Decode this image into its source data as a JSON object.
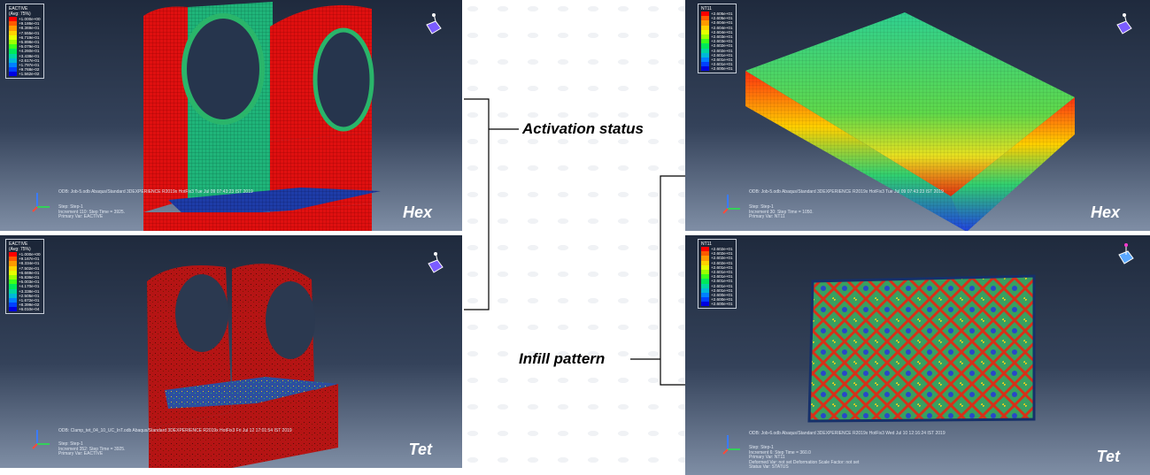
{
  "annotations": {
    "activation": "Activation status",
    "infill": "Infill pattern"
  },
  "panels": {
    "p1": {
      "label": "Hex",
      "legend_title": [
        "EACTIVE",
        "(Avg: 75%)"
      ],
      "legend_values": [
        "+1.000e+00",
        "+9.186e-01",
        "+8.369e-01",
        "+7.555e-01",
        "+6.719e-01",
        "+5.898e-01",
        "+5.079e-01",
        "+4.260e-01",
        "+3.438e-01",
        "+2.617e-01",
        "+1.797e-01",
        "+9.768e-02",
        "+1.562e-02"
      ],
      "info_line": "ODB: Job-5.odb    Abaqus/Standard 3DEXPERIENCE R2019x HotFix3    Tue Jul 09 07:43:23 IST 2019",
      "step_lines": [
        "Step: Step-1",
        "Increment   110: Step Time =   3925.",
        "Primary Var: EACTIVE"
      ]
    },
    "p2": {
      "label": "Tet",
      "legend_title": [
        "EACTIVE",
        "(Avg: 75%)"
      ],
      "legend_values": [
        "+1.000e+00",
        "+9.167e-01",
        "+8.334e-01",
        "+7.502e-01",
        "+6.669e-01",
        "+5.836e-01",
        "+5.003e-01",
        "+4.170e-01",
        "+3.338e-01",
        "+2.505e-01",
        "+1.672e-01",
        "+8.399e-02",
        "+6.010e-04"
      ],
      "info_line": "ODB: Clamp_tet_04_10_UC_InT.odb    Abaqus/Standard 3DEXPERIENCE R2019x HotFix3    Fri Jul 12 17:01:54 IST 2019",
      "step_lines": [
        "Step: Step-1",
        "Increment   352: Step Time =   3925.",
        "Primary Var: EACTIVE"
      ]
    },
    "p3": {
      "label": "Hex",
      "legend_title": [
        "NT11",
        ""
      ],
      "legend_values": [
        "+2.605e+01",
        "+2.605e+01",
        "+2.604e+01",
        "+2.604e+01",
        "+2.604e+01",
        "+2.603e+01",
        "+2.603e+01",
        "+2.602e+01",
        "+2.602e+01",
        "+2.601e+01",
        "+2.601e+01",
        "+2.601e+01",
        "+2.600e+01"
      ],
      "info_line": "ODB: Job-5.odb    Abaqus/Standard 3DEXPERIENCE R2019x HotFix3    Tue Jul 09 07:43:23 IST 2019",
      "step_lines": [
        "Step: Step-1",
        "Increment   30: Step Time =   1050.",
        "Primary Var: NT11"
      ]
    },
    "p4": {
      "label": "Tet",
      "legend_title": [
        "NT11",
        ""
      ],
      "legend_values": [
        "+2.602e+01",
        "+2.602e+01",
        "+2.602e+01",
        "+2.602e+01",
        "+2.601e+01",
        "+2.601e+01",
        "+2.601e+01",
        "+2.601e+01",
        "+2.601e+01",
        "+2.601e+01",
        "+2.600e+01",
        "+2.600e+01",
        "+2.600e+01"
      ],
      "info_line": "ODB: Job-6.odb    Abaqus/Standard 3DEXPERIENCE R2019x HotFix3    Wed Jul 10 12:16:24 IST 2019",
      "step_lines": [
        "Step: Step-1",
        "Increment   6: Step Time =   360.0",
        "Primary Var: NT11",
        "Deformed Var: not set   Deformation Scale Factor: not set",
        "Status Var: STATUS"
      ]
    }
  },
  "legend_colors": [
    "#ff0000",
    "#ff5a00",
    "#ff9a00",
    "#ffd200",
    "#e6ff00",
    "#9cff00",
    "#3cff1a",
    "#00e85a",
    "#00d6a0",
    "#00b8d8",
    "#0080ff",
    "#0040ff",
    "#0000e0"
  ]
}
